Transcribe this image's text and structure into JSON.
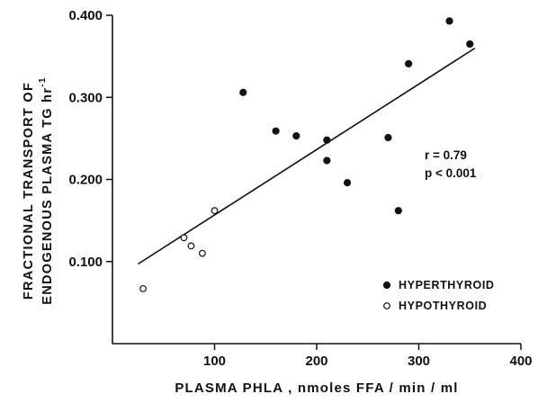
{
  "chart_data": {
    "type": "scatter",
    "xlabel": "PLASMA  PHLA , nmoles  FFA / min / ml",
    "ylabel_lines": [
      "FRACTIONAL  TRANSPORT  OF",
      "ENDOGENOUS  PLASMA  TG  hr"
    ],
    "ylabel_superscript": "-1",
    "xlim": [
      0,
      400
    ],
    "ylim": [
      0.0,
      0.4
    ],
    "x_ticks": [
      100,
      200,
      300,
      400
    ],
    "x_tick_labels": [
      "100",
      "200",
      "300",
      "400"
    ],
    "y_ticks": [
      0.1,
      0.2,
      0.3,
      0.4
    ],
    "y_tick_labels": [
      "0.100",
      "0.200",
      "0.300",
      "0.400"
    ],
    "grid": false,
    "legend_position": "bottom-right",
    "series": [
      {
        "name": "HYPERTHYROID",
        "marker": "filled-circle",
        "points": [
          {
            "x": 128,
            "y": 0.306
          },
          {
            "x": 160,
            "y": 0.259
          },
          {
            "x": 180,
            "y": 0.253
          },
          {
            "x": 210,
            "y": 0.248
          },
          {
            "x": 210,
            "y": 0.223
          },
          {
            "x": 230,
            "y": 0.196
          },
          {
            "x": 270,
            "y": 0.251
          },
          {
            "x": 280,
            "y": 0.162
          },
          {
            "x": 290,
            "y": 0.341
          },
          {
            "x": 330,
            "y": 0.393
          },
          {
            "x": 350,
            "y": 0.365
          }
        ]
      },
      {
        "name": "HYPOTHYROID",
        "marker": "open-circle",
        "points": [
          {
            "x": 30,
            "y": 0.067
          },
          {
            "x": 70,
            "y": 0.129
          },
          {
            "x": 77,
            "y": 0.119
          },
          {
            "x": 88,
            "y": 0.11
          },
          {
            "x": 100,
            "y": 0.162
          }
        ]
      }
    ],
    "regression_line": {
      "x1": 25,
      "y1": 0.097,
      "x2": 355,
      "y2": 0.36
    },
    "annotation_lines": [
      "r  = 0.79",
      "p < 0.001"
    ]
  }
}
